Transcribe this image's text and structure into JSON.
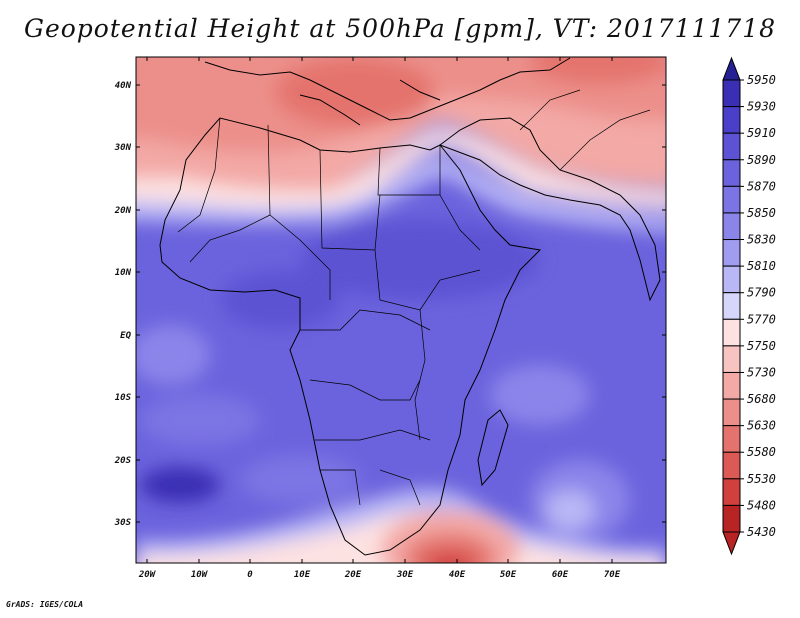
{
  "title": "Geopotential Height at 500hPa [gpm], VT: 2017111718",
  "credit": "GrADS: IGES/COLA",
  "colorbar": {
    "levels": [
      "5950",
      "5930",
      "5910",
      "5890",
      "5870",
      "5850",
      "5830",
      "5810",
      "5790",
      "5770",
      "5750",
      "5730",
      "5680",
      "5630",
      "5580",
      "5530",
      "5480",
      "5430"
    ],
    "colors": [
      "#252093",
      "#3a2fb4",
      "#4a3fc8",
      "#5c52d3",
      "#6b63dd",
      "#7b74e4",
      "#8b85ea",
      "#a09cef",
      "#b9b7f5",
      "#d6d5fa",
      "#fde2e2",
      "#f8c4c2",
      "#f3a9a6",
      "#ec8f8a",
      "#e4736d",
      "#dc5a55",
      "#d2403d",
      "#b82424"
    ]
  },
  "axes": {
    "lon_labels": [
      "20W",
      "10W",
      "0",
      "10E",
      "20E",
      "30E",
      "40E",
      "50E",
      "60E",
      "70E"
    ],
    "lat_labels": [
      "40N",
      "30N",
      "20N",
      "10N",
      "EQ",
      "10S",
      "20S",
      "30S"
    ]
  },
  "legend": {
    "placement": "right"
  }
}
